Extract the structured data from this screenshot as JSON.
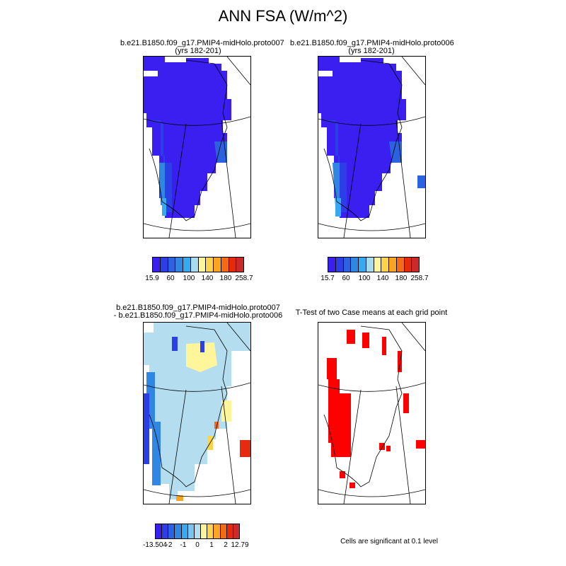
{
  "title": "ANN FSA (W/m^2)",
  "panels": {
    "case1": {
      "title_line1": "b.e21.B1850.f09_g17.PMIP4-midHolo.proto007",
      "title_line2": "(yrs 182-201)",
      "colorbar": {
        "colors": [
          "#3a1ff0",
          "#2c3fe6",
          "#2b62e0",
          "#2f86e3",
          "#35aaf0",
          "#a9dbef",
          "#fff59b",
          "#fcd44a",
          "#f9a422",
          "#f56a12",
          "#e62a0d",
          "#cc2a2a"
        ],
        "labels": [
          "15.9",
          "60",
          "100",
          "140",
          "180",
          "258.7"
        ]
      }
    },
    "case2": {
      "title_line1": "b.e21.B1850.f09_g17.PMIP4-midHolo.proto006",
      "title_line2": "(yrs 182-201)",
      "colorbar": {
        "colors": [
          "#3a1ff0",
          "#2c3fe6",
          "#2b62e0",
          "#2f86e3",
          "#35aaf0",
          "#a9dbef",
          "#fff59b",
          "#fcd44a",
          "#f9a422",
          "#f56a12",
          "#e62a0d",
          "#cc2a2a"
        ],
        "labels": [
          "15.7",
          "60",
          "100",
          "140",
          "180",
          "258.7"
        ]
      }
    },
    "difference": {
      "title_line1": "b.e21.B1850.f09_g17.PMIP4-midHolo.proto007",
      "title_line2": "- b.e21.B1850.f09_g17.PMIP4-midHolo.proto006",
      "colorbar": {
        "colors": [
          "#3a1ff0",
          "#2c3fe6",
          "#2b62e0",
          "#2f86e3",
          "#35aaf0",
          "#7cc4f0",
          "#b4def0",
          "#fff59b",
          "#fcd44a",
          "#f9a422",
          "#f56a12",
          "#e62a0d",
          "#cc2a2a"
        ],
        "labels": [
          "-13.504",
          "-2",
          "-1",
          "0",
          "1",
          "2",
          "12.79"
        ]
      }
    },
    "ttest": {
      "title": "T-Test of two Case means at each grid point",
      "note": "Cells are significant at 0.1 level",
      "significant_color": "#ff0000"
    }
  }
}
